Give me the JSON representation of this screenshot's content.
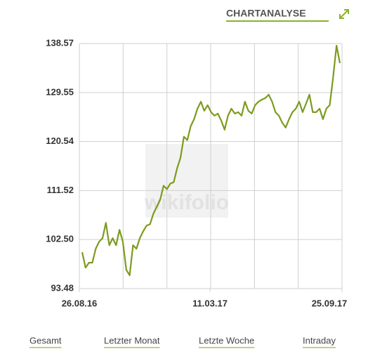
{
  "header": {
    "title": "CHARTANALYSE"
  },
  "chart_data": {
    "type": "line",
    "watermark": "wikifolio",
    "color": "#7c9b1f",
    "grid": true,
    "values": [
      100.17,
      97.34,
      98.24,
      98.24,
      100.81,
      102.1,
      102.75,
      105.58,
      101.46,
      102.75,
      101.46,
      104.29,
      102.1,
      96.95,
      95.92,
      101.46,
      100.81,
      102.75,
      104.04,
      105.07,
      105.32,
      107.26,
      108.55,
      109.84,
      112.41,
      111.77,
      112.8,
      113.06,
      115.63,
      117.57,
      121.43,
      120.79,
      123.36,
      124.65,
      126.59,
      127.87,
      126.2,
      127.23,
      125.94,
      125.3,
      125.68,
      124.4,
      122.72,
      125.3,
      126.59,
      125.68,
      125.94,
      125.3,
      127.87,
      126.2,
      125.68,
      127.23,
      127.87,
      128.26,
      128.52,
      129.16,
      127.87,
      125.94,
      125.3,
      124.01,
      123.11,
      124.65,
      125.94,
      126.59,
      127.87,
      125.94,
      127.49,
      129.16,
      125.94,
      125.94,
      126.59,
      124.65,
      126.59,
      127.23,
      132.38,
      138.18,
      134.96
    ],
    "xlim": [
      -0.83,
      76.62
    ],
    "xticks": [
      {
        "value": -0.83,
        "label": "26.08.16"
      },
      {
        "value": 37.69,
        "label": "11.03.17"
      },
      {
        "value": 76.62,
        "label": "25.09.17"
      }
    ],
    "ylim": [
      93.48,
      138.57
    ],
    "yticks": [
      93.48,
      {
        "value": 102.5,
        "label": "102.50"
      },
      111.52,
      120.54,
      129.55,
      138.57
    ]
  },
  "links": [
    "Gesamt",
    "Letzter Monat",
    "Letzte Woche",
    "Intraday"
  ]
}
